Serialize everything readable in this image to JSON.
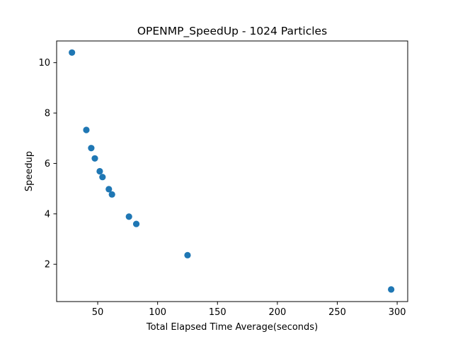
{
  "chart_data": {
    "type": "scatter",
    "title": "OPENMP_SpeedUp - 1024 Particles",
    "xlabel": "Total Elapsed Time Average(seconds)",
    "ylabel": "Speedup",
    "xlim": [
      15.7,
      308.8
    ],
    "ylim": [
      0.52,
      10.86
    ],
    "xticks": [
      50,
      100,
      150,
      200,
      250,
      300
    ],
    "yticks": [
      2,
      4,
      6,
      8,
      10
    ],
    "grid": false,
    "marker_color": "#1f77b4",
    "series": [
      {
        "x": [
          28.5,
          40.5,
          44.6,
          47.6,
          51.7,
          54.0,
          59.3,
          61.9,
          76.1,
          82.2,
          125.0,
          295.0
        ],
        "y": [
          10.4,
          7.33,
          6.61,
          6.2,
          5.69,
          5.46,
          4.98,
          4.77,
          3.89,
          3.6,
          2.36,
          1.0
        ]
      }
    ]
  }
}
